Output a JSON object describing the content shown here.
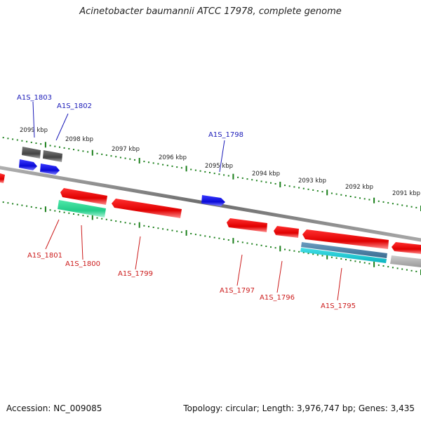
{
  "title": "Acinetobacter baumannii ATCC 17978, complete genome",
  "accession": "Accession: NC_009085",
  "topology": "Topology: circular; Length: 3,976,747 bp; Genes: 3,435",
  "colors": {
    "forward_gene": "#2020ee",
    "reverse_gene": "#ee1010",
    "backbone": "#8a8a8a",
    "ruler_ticks": "#1a7f1a",
    "label_forward": "#1a1ab8",
    "label_reverse": "#cc1b1b",
    "rna_gene": "#33dd99",
    "pseudo_gene": "#555555",
    "misc_feature": "#4488aa"
  },
  "ruler_labels": [
    "2099 kbp",
    "2098 kbp",
    "2097 kbp",
    "2096 kbp",
    "2095 kbp",
    "2094 kbp",
    "2093 kbp",
    "2092 kbp",
    "2091 kbp"
  ],
  "genes": [
    {
      "id": "A1S_1803",
      "strand": "forward"
    },
    {
      "id": "A1S_1802",
      "strand": "forward"
    },
    {
      "id": "A1S_1798",
      "strand": "forward"
    },
    {
      "id": "A1S_1801",
      "strand": "reverse"
    },
    {
      "id": "A1S_1800",
      "strand": "reverse"
    },
    {
      "id": "A1S_1799",
      "strand": "reverse"
    },
    {
      "id": "A1S_1797",
      "strand": "reverse"
    },
    {
      "id": "A1S_1796",
      "strand": "reverse"
    },
    {
      "id": "A1S_1795",
      "strand": "reverse"
    }
  ]
}
